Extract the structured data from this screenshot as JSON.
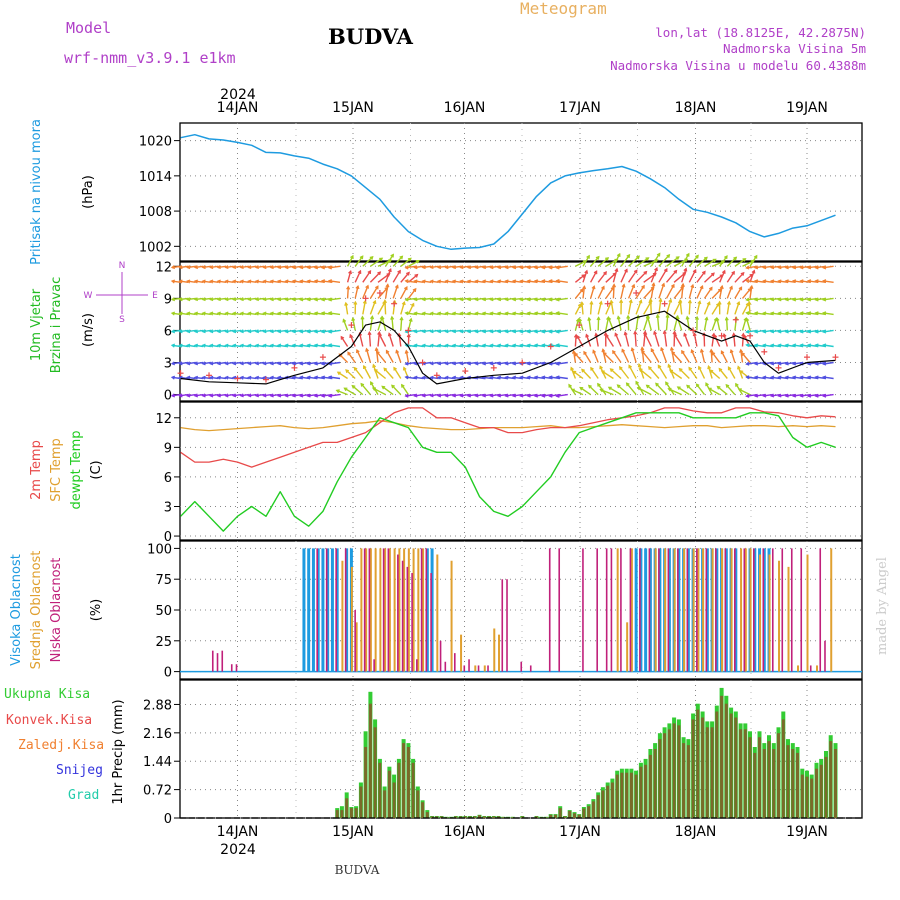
{
  "header": {
    "model_label": "Model",
    "model_name": "wrf-nmm_v3.9.1 e1km",
    "station": "BUDVA",
    "meteogram_label": "Meteogram",
    "lonlat": "lon,lat (18.8125E, 42.2875N)",
    "elevation": "Nadmorska Visina 5m",
    "model_elevation": "Nadmorska Visina u modelu 60.4388m",
    "top_year": "2024",
    "bottom_year": "2024",
    "footer_station": "BUDVA",
    "watermark": "made by Angel"
  },
  "colors": {
    "pressure": "#1e9be0",
    "temp2m": "#e84a4a",
    "sfctemp": "#e0a030",
    "dewpt": "#22cc22",
    "high_cloud": "#1e9be0",
    "mid_cloud": "#e0a030",
    "low_cloud": "#c0207a",
    "total_precip": "#33cc33",
    "conv_precip": "#e84a4a",
    "frozen_precip": "#f08030",
    "snow": "#3333dd",
    "hail": "#22ccaa",
    "model_text": "#b040c8",
    "meteogram_text": "#e8b060",
    "grid": "#888888",
    "wind_speed_line": "#000000",
    "wind_gust_marks": "#e84a4a"
  },
  "time_axis": {
    "day_labels": [
      "14JAN",
      "15JAN",
      "16JAN",
      "17JAN",
      "18JAN",
      "19JAN"
    ]
  },
  "chart_data": [
    {
      "type": "line",
      "panel": "pressure",
      "ylabel": "Pritisak na nivou mora",
      "unit": "(hPa)",
      "yticks": [
        1002,
        1008,
        1014,
        1020
      ],
      "ylim": [
        999.5,
        1023
      ],
      "x_hours": [
        0,
        3,
        6,
        9,
        12,
        15,
        18,
        21,
        24,
        27,
        30,
        33,
        36,
        39,
        42,
        45,
        48,
        51,
        54,
        57,
        60,
        63,
        66,
        69,
        72,
        75,
        78,
        81,
        84,
        87,
        90,
        93,
        96,
        99,
        102,
        105,
        108,
        111,
        114,
        117,
        120,
        123,
        126,
        129,
        132,
        138
      ],
      "values": [
        1020.5,
        1021.0,
        1020.3,
        1020.1,
        1019.7,
        1019.2,
        1018.0,
        1017.9,
        1017.4,
        1017.0,
        1016.0,
        1015.2,
        1014.0,
        1012.0,
        1010.0,
        1007.0,
        1004.5,
        1003.0,
        1002.0,
        1001.5,
        1001.7,
        1001.8,
        1002.4,
        1004.5,
        1007.5,
        1010.5,
        1012.8,
        1014.0,
        1014.5,
        1014.9,
        1015.2,
        1015.6,
        1014.8,
        1013.5,
        1012.0,
        1010.0,
        1008.3,
        1007.8,
        1007.0,
        1006.0,
        1004.5,
        1003.6,
        1004.2,
        1005.1,
        1005.5,
        1007.3
      ]
    },
    {
      "type": "line",
      "panel": "wind",
      "ylabel": "10m Vjetar Brzina i Pravac",
      "unit": "(m/s)",
      "compass": {
        "n": "N",
        "e": "E",
        "w": "W",
        "s": "S"
      },
      "yticks": [
        0,
        3,
        6,
        9,
        12
      ],
      "ylim": [
        -0.6,
        12.4
      ],
      "x_hours": [
        0,
        6,
        12,
        18,
        24,
        30,
        36,
        39,
        42,
        45,
        48,
        51,
        54,
        60,
        66,
        72,
        78,
        84,
        90,
        96,
        102,
        108,
        114,
        117,
        120,
        123,
        126,
        132,
        138
      ],
      "speed": [
        1.5,
        1.2,
        1.1,
        1.0,
        1.8,
        2.5,
        4.5,
        6.5,
        6.8,
        6.0,
        4.5,
        2.0,
        1.0,
        1.5,
        1.8,
        2.0,
        3.0,
        4.5,
        6.0,
        7.2,
        7.8,
        6.0,
        5.0,
        5.5,
        5.0,
        3.0,
        2.0,
        3.0,
        3.2
      ],
      "gust": [
        2.0,
        1.8,
        1.5,
        1.4,
        2.5,
        3.5,
        6.5,
        9.0,
        9.5,
        8.5,
        6.0,
        3.0,
        1.8,
        2.2,
        2.5,
        3.0,
        4.5,
        6.5,
        8.5,
        9.5,
        8.5,
        6.0,
        5.5,
        7.0,
        5.5,
        4.0,
        2.5,
        3.5,
        3.5
      ]
    },
    {
      "type": "line",
      "panel": "temperature",
      "ylabel": "2m Temp / SFC Temp / dewpt Temp",
      "unit": "(C)",
      "series_names": [
        "2m Temp",
        "SFC Temp",
        "dewpt Temp"
      ],
      "yticks": [
        0,
        3,
        6,
        9,
        12
      ],
      "ylim": [
        -0.4,
        13.6
      ],
      "x_hours": [
        0,
        3,
        6,
        9,
        12,
        15,
        18,
        21,
        24,
        27,
        30,
        33,
        36,
        39,
        42,
        45,
        48,
        51,
        54,
        57,
        60,
        63,
        66,
        69,
        72,
        75,
        78,
        81,
        84,
        87,
        90,
        93,
        96,
        99,
        102,
        105,
        108,
        111,
        114,
        117,
        120,
        123,
        126,
        129,
        132,
        135,
        138
      ],
      "temp2m": [
        8.5,
        7.5,
        7.5,
        7.8,
        7.5,
        7.0,
        7.5,
        8.0,
        8.5,
        9.0,
        9.5,
        9.5,
        10.0,
        10.5,
        11.5,
        12.5,
        13.0,
        13.0,
        12.0,
        12.0,
        11.5,
        11.0,
        11.0,
        10.5,
        10.5,
        10.8,
        11.0,
        11.0,
        11.2,
        11.5,
        11.8,
        12.0,
        12.2,
        12.5,
        13.0,
        13.0,
        12.7,
        12.5,
        12.5,
        13.0,
        13.0,
        12.6,
        12.5,
        12.2,
        12.0,
        12.2,
        12.1
      ],
      "sfctemp": [
        11.0,
        10.8,
        10.7,
        10.8,
        10.9,
        11.0,
        11.1,
        11.2,
        11.0,
        10.9,
        11.0,
        11.2,
        11.4,
        11.5,
        11.7,
        11.5,
        11.2,
        11.0,
        10.9,
        10.8,
        10.8,
        10.9,
        11.0,
        11.0,
        11.0,
        11.1,
        11.2,
        11.0,
        11.0,
        11.1,
        11.2,
        11.3,
        11.2,
        11.1,
        11.0,
        11.1,
        11.2,
        11.2,
        11.0,
        11.1,
        11.2,
        11.2,
        11.1,
        11.2,
        11.1,
        11.2,
        11.1
      ],
      "dewpt": [
        2.0,
        3.5,
        2.0,
        0.5,
        2.0,
        3.0,
        2.0,
        4.5,
        2.0,
        1.0,
        2.5,
        5.5,
        8.0,
        10.0,
        12.0,
        11.5,
        11.0,
        9.0,
        8.5,
        8.5,
        7.0,
        4.0,
        2.5,
        2.0,
        3.0,
        4.5,
        6.0,
        8.5,
        10.5,
        11.0,
        11.5,
        12.0,
        12.5,
        12.5,
        12.5,
        12.5,
        12.0,
        12.0,
        12.0,
        12.0,
        12.5,
        12.5,
        12.2,
        10.0,
        9.0,
        9.5,
        9.0
      ]
    },
    {
      "type": "bar",
      "panel": "clouds",
      "ylabel": "Visoka Oblacnost / Srednja Oblacnost / Niska Oblacnost",
      "unit": "(%)",
      "series_names": [
        "Visoka Oblacnost",
        "Srednja Oblacnost",
        "Niska Oblacnost"
      ],
      "yticks": [
        0,
        25,
        50,
        75,
        100
      ],
      "ylim": [
        -6,
        106
      ],
      "high_hours": [
        26,
        27,
        28,
        29,
        30,
        31,
        32,
        33,
        35,
        36,
        52,
        53,
        96,
        97,
        98,
        99,
        100,
        101,
        102,
        103,
        104,
        105,
        106,
        107,
        108,
        109,
        110,
        111,
        112,
        113,
        114,
        115,
        116,
        117,
        120,
        121,
        122,
        123,
        124
      ],
      "high_values": [
        100,
        100,
        100,
        100,
        100,
        100,
        100,
        100,
        100,
        100,
        100,
        100,
        100,
        100,
        100,
        100,
        100,
        100,
        100,
        100,
        100,
        100,
        100,
        100,
        100,
        100,
        100,
        100,
        100,
        100,
        100,
        100,
        100,
        100,
        100,
        100,
        100,
        100,
        100
      ],
      "mid_hours": [
        34,
        36,
        37,
        38,
        39,
        40,
        41,
        42,
        43,
        44,
        45,
        46,
        47,
        48,
        49,
        50,
        51,
        54,
        57,
        59,
        62,
        64,
        66,
        67,
        92,
        94,
        95,
        100,
        102,
        104,
        106,
        108,
        109,
        110,
        112,
        114,
        116,
        118,
        119,
        120,
        122,
        124,
        126,
        128,
        130,
        132,
        134,
        137
      ],
      "mid_values": [
        90,
        85,
        40,
        100,
        100,
        100,
        100,
        100,
        100,
        100,
        100,
        100,
        100,
        100,
        100,
        100,
        100,
        95,
        90,
        30,
        5,
        5,
        35,
        30,
        100,
        40,
        100,
        100,
        100,
        100,
        100,
        100,
        100,
        100,
        100,
        100,
        100,
        100,
        100,
        100,
        95,
        95,
        90,
        85,
        5,
        95,
        5,
        100
      ],
      "low_hours": [
        7,
        8,
        9,
        11,
        12,
        29,
        31,
        33,
        35,
        37,
        39,
        40,
        41,
        43,
        44,
        46,
        47,
        48,
        49,
        50,
        51,
        52,
        53,
        55,
        56,
        58,
        60,
        61,
        63,
        65,
        68,
        69,
        72,
        74,
        78,
        80,
        85,
        88,
        90,
        91,
        93,
        95,
        97,
        99,
        101,
        103,
        105,
        107,
        109,
        111,
        113,
        115,
        117,
        119,
        121,
        123,
        125,
        127,
        129,
        131,
        133,
        135,
        136
      ],
      "low_values": [
        17,
        15,
        17,
        6,
        6,
        100,
        100,
        100,
        100,
        50,
        100,
        100,
        10,
        100,
        100,
        95,
        90,
        85,
        80,
        10,
        100,
        100,
        80,
        25,
        8,
        15,
        5,
        10,
        5,
        5,
        75,
        75,
        8,
        5,
        100,
        100,
        100,
        100,
        100,
        100,
        100,
        100,
        100,
        100,
        100,
        100,
        100,
        100,
        100,
        100,
        100,
        100,
        100,
        100,
        100,
        100,
        100,
        100,
        100,
        100,
        5,
        100,
        25
      ]
    },
    {
      "type": "bar",
      "panel": "precip",
      "ylabel": "1hr Precip (mm)",
      "series_names": [
        "Ukupna Kisa",
        "Konvek.Kisa",
        "Zaledj.Kisa",
        "Snijeg",
        "Grad"
      ],
      "yticks": [
        0,
        0.72,
        1.44,
        2.16,
        2.88
      ],
      "ylim": [
        0,
        3.5
      ],
      "hours": [
        33,
        34,
        35,
        36,
        37,
        38,
        39,
        40,
        41,
        42,
        43,
        44,
        45,
        46,
        47,
        48,
        49,
        50,
        51,
        52,
        53,
        54,
        55,
        56,
        57,
        58,
        59,
        60,
        61,
        62,
        63,
        64,
        65,
        66,
        67,
        68,
        69,
        70,
        72,
        75,
        76,
        77,
        78,
        79,
        80,
        81,
        82,
        83,
        84,
        85,
        86,
        87,
        88,
        89,
        90,
        91,
        92,
        93,
        94,
        95,
        96,
        97,
        98,
        99,
        100,
        101,
        102,
        103,
        104,
        105,
        106,
        107,
        108,
        109,
        110,
        111,
        112,
        113,
        114,
        115,
        116,
        117,
        118,
        119,
        120,
        121,
        122,
        123,
        124,
        125,
        126,
        127,
        128,
        129,
        130,
        131,
        132,
        133,
        134,
        135,
        136,
        137,
        138
      ],
      "total": [
        0.25,
        0.3,
        0.65,
        0.28,
        0.3,
        0.9,
        2.2,
        3.2,
        2.5,
        1.5,
        0.8,
        1.3,
        1.1,
        1.5,
        2.0,
        1.9,
        1.5,
        0.8,
        0.45,
        0.2,
        0.05,
        0.05,
        0.05,
        0.03,
        0.03,
        0.05,
        0.05,
        0.05,
        0.05,
        0.05,
        0.08,
        0.05,
        0.05,
        0.05,
        0.05,
        0.03,
        0.03,
        0.03,
        0.05,
        0.05,
        0.03,
        0.03,
        0.1,
        0.1,
        0.3,
        0.05,
        0.2,
        0.15,
        0.1,
        0.28,
        0.35,
        0.48,
        0.65,
        0.78,
        0.9,
        1.0,
        1.2,
        1.25,
        1.25,
        1.25,
        1.2,
        1.4,
        1.5,
        1.75,
        1.9,
        2.15,
        2.3,
        2.4,
        2.55,
        2.5,
        2.05,
        2.0,
        2.65,
        2.9,
        2.7,
        2.45,
        2.45,
        2.85,
        3.3,
        3.1,
        2.8,
        2.7,
        2.4,
        2.4,
        2.2,
        1.8,
        2.2,
        1.9,
        2.1,
        1.9,
        2.3,
        2.7,
        2.0,
        1.9,
        1.8,
        1.25,
        1.2,
        1.1,
        1.4,
        1.5,
        1.7,
        2.1,
        1.9
      ],
      "convective": [
        0.2,
        0.2,
        0.5,
        0.25,
        0.25,
        0.8,
        1.8,
        2.9,
        2.3,
        1.4,
        0.7,
        1.2,
        0.9,
        1.4,
        1.9,
        1.8,
        1.4,
        0.7,
        0.4,
        0.15,
        0.04,
        0.04,
        0.04,
        0.02,
        0.02,
        0.04,
        0.04,
        0.04,
        0.04,
        0.04,
        0.07,
        0.04,
        0.04,
        0.04,
        0.04,
        0.02,
        0.02,
        0.02,
        0.04,
        0.04,
        0.02,
        0.02,
        0.08,
        0.08,
        0.25,
        0.04,
        0.18,
        0.12,
        0.08,
        0.24,
        0.3,
        0.42,
        0.58,
        0.7,
        0.82,
        0.9,
        1.1,
        1.15,
        1.15,
        1.15,
        1.1,
        1.3,
        1.35,
        1.6,
        1.75,
        2.0,
        2.15,
        2.25,
        2.4,
        2.35,
        1.9,
        1.85,
        2.5,
        2.75,
        2.55,
        2.3,
        2.3,
        2.7,
        3.1,
        2.9,
        2.65,
        2.55,
        2.25,
        2.25,
        2.05,
        1.65,
        2.05,
        1.75,
        1.95,
        1.75,
        2.15,
        2.5,
        1.85,
        1.75,
        1.65,
        1.1,
        1.05,
        1.0,
        1.25,
        1.35,
        1.55,
        1.95,
        1.75
      ]
    }
  ]
}
